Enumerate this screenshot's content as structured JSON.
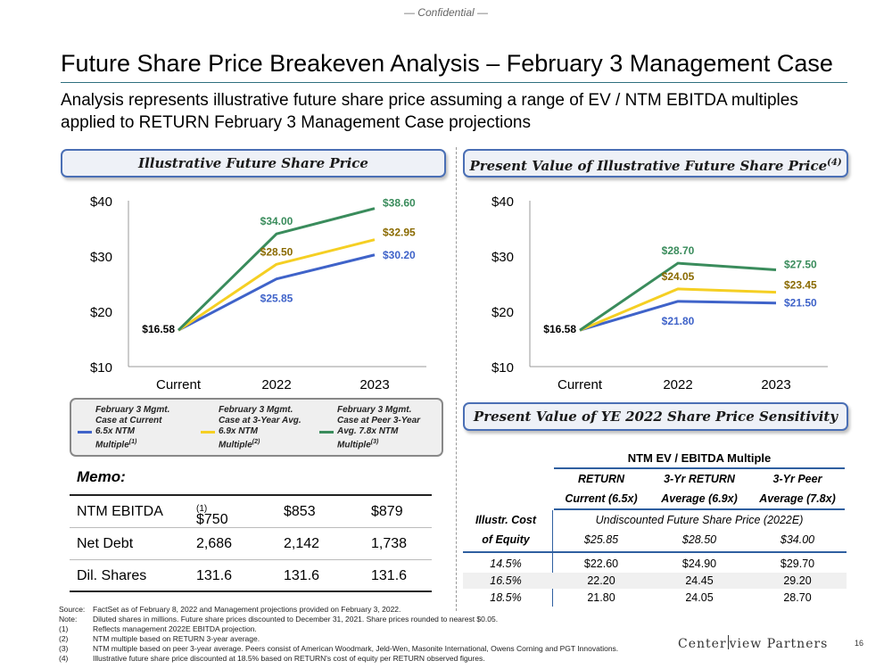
{
  "header": {
    "confidential": "— Confidential —",
    "title": "Future Share Price Breakeven Analysis – February 3 Management Case",
    "subtitle": "Analysis represents illustrative future share price assuming a range of EV / NTM EBITDA multiples applied to RETURN February 3 Management Case projections"
  },
  "panels": {
    "left_title": "Illustrative Future Share Price",
    "right_title": "Present Value of Illustrative Future Share Price",
    "right_title_sup": "(4)",
    "sensitivity_title": "Present Value of YE 2022 Share Price Sensitivity"
  },
  "colors": {
    "blue": "#3f63c9",
    "gold": "#f5cf23",
    "green": "#3a8c5c",
    "gold_text": "#8a6a00"
  },
  "chart_data": [
    {
      "type": "line",
      "title": "Illustrative Future Share Price",
      "categories": [
        "Current",
        "2022",
        "2023"
      ],
      "y_ticks": [
        "$10",
        "$20",
        "$30",
        "$40"
      ],
      "ylim": [
        10,
        40
      ],
      "series": [
        {
          "name": "February 3 Mgmt. Case at Current 6.5x NTM Multiple(1)",
          "color": "#3f63c9",
          "values": [
            16.58,
            25.85,
            30.2
          ],
          "labels": [
            "$16.58",
            "$25.85",
            "$30.20"
          ]
        },
        {
          "name": "February 3 Mgmt. Case at 3-Year Avg. 6.9x NTM Multiple(2)",
          "color": "#f5cf23",
          "values": [
            16.58,
            28.5,
            32.95
          ],
          "labels": [
            "",
            "$28.50",
            "$32.95"
          ]
        },
        {
          "name": "February 3 Mgmt. Case at Peer 3-Year Avg. 7.8x NTM Multiple(3)",
          "color": "#3a8c5c",
          "values": [
            16.58,
            34.0,
            38.6
          ],
          "labels": [
            "",
            "$34.00",
            "$38.60"
          ]
        }
      ]
    },
    {
      "type": "line",
      "title": "Present Value of Illustrative Future Share Price(4)",
      "categories": [
        "Current",
        "2022",
        "2023"
      ],
      "y_ticks": [
        "$10",
        "$20",
        "$30",
        "$40"
      ],
      "ylim": [
        10,
        40
      ],
      "series": [
        {
          "name": "February 3 Mgmt. Case at Current 6.5x NTM Multiple(1)",
          "color": "#3f63c9",
          "values": [
            16.58,
            21.8,
            21.5
          ],
          "labels": [
            "$16.58",
            "$21.80",
            "$21.50"
          ]
        },
        {
          "name": "February 3 Mgmt. Case at 3-Year Avg. 6.9x NTM Multiple(2)",
          "color": "#f5cf23",
          "values": [
            16.58,
            24.05,
            23.45
          ],
          "labels": [
            "",
            "$24.05",
            "$23.45"
          ]
        },
        {
          "name": "February 3 Mgmt. Case at Peer 3-Year Avg. 7.8x NTM Multiple(3)",
          "color": "#3a8c5c",
          "values": [
            16.58,
            28.7,
            27.5
          ],
          "labels": [
            "",
            "$28.70",
            "$27.50"
          ]
        }
      ]
    }
  ],
  "legend": [
    {
      "line1": "February 3 Mgmt.",
      "line2": "Case at Current",
      "line3": "6.5x NTM",
      "line4": "Multiple",
      "sup": "(1)",
      "color": "#3f63c9"
    },
    {
      "line1": "February 3 Mgmt.",
      "line2": "Case at 3-Year Avg.",
      "line3": "6.9x NTM",
      "line4": "Multiple",
      "sup": "(2)",
      "color": "#f5cf23"
    },
    {
      "line1": "February 3 Mgmt.",
      "line2": "Case at Peer 3-Year",
      "line3": "Avg. 7.8x NTM",
      "line4": "Multiple",
      "sup": "(3)",
      "color": "#3a8c5c"
    }
  ],
  "memo": {
    "label": "Memo:",
    "rows": [
      {
        "label": "NTM EBITDA",
        "v1": "$750",
        "v1_sup": "(1)",
        "v2": "$853",
        "v3": "$879"
      },
      {
        "label": "Net Debt",
        "v1": "2,686",
        "v1_sup": "",
        "v2": "2,142",
        "v3": "1,738"
      },
      {
        "label": "Dil. Shares",
        "v1": "131.6",
        "v1_sup": "",
        "v2": "131.6",
        "v3": "131.6"
      }
    ]
  },
  "sensitivity": {
    "group_header": "NTM EV / EBITDA Multiple",
    "columns": [
      {
        "l1": "RETURN",
        "l2": "Current (6.5x)"
      },
      {
        "l1": "3-Yr RETURN",
        "l2": "Average (6.9x)"
      },
      {
        "l1": "3-Yr Peer",
        "l2": "Average (7.8x)"
      }
    ],
    "row_header_l1": "Illustr. Cost",
    "row_header_l2": "of Equity",
    "undiscounted_label": "Undiscounted Future Share Price (2022E)",
    "undiscounted_values": [
      "$25.85",
      "$28.50",
      "$34.00"
    ],
    "rows": [
      {
        "coe": "14.5%",
        "values": [
          "$22.60",
          "$24.90",
          "$29.70"
        ]
      },
      {
        "coe": "16.5%",
        "values": [
          "22.20",
          "24.45",
          "29.20"
        ]
      },
      {
        "coe": "18.5%",
        "values": [
          "21.80",
          "24.05",
          "28.70"
        ]
      }
    ]
  },
  "footnotes": [
    {
      "tag": "Source:",
      "text": "FactSet as of February 8, 2022 and Management projections provided on February 3, 2022."
    },
    {
      "tag": "Note:",
      "text": "Diluted shares in millions. Future share prices discounted to December 31, 2021. Share prices rounded to nearest $0.05."
    },
    {
      "tag": "(1)",
      "text": "Reflects management 2022E EBITDA projection."
    },
    {
      "tag": "(2)",
      "text": "NTM multiple based on RETURN 3-year average."
    },
    {
      "tag": "(3)",
      "text": "NTM multiple based on peer 3-year average. Peers consist of American Woodmark, Jeld-Wen, Masonite International, Owens Corning and PGT Innovations."
    },
    {
      "tag": "(4)",
      "text": "Illustrative future share price discounted at 18.5% based on RETURN's cost of equity per RETURN observed figures."
    }
  ],
  "footer": {
    "logo_left": "Center",
    "logo_right": "view Partners",
    "page_number": "16"
  }
}
